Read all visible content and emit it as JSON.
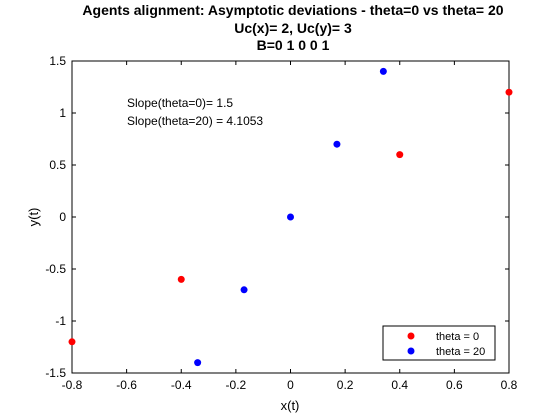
{
  "chart_data": {
    "type": "scatter",
    "title_lines": [
      "Agents alignment: Asymptotic deviations - theta=0 vs theta= 20",
      "Uc(x)= 2, Uc(y)= 3",
      "B=0  1  0  0  1"
    ],
    "xlabel": "x(t)",
    "ylabel": "y(t)",
    "xlim": [
      -0.8,
      0.8
    ],
    "ylim": [
      -1.5,
      1.5
    ],
    "xticks": [
      -0.8,
      -0.6,
      -0.4,
      -0.2,
      0,
      0.2,
      0.4,
      0.6,
      0.8
    ],
    "yticks": [
      -1.5,
      -1,
      -0.5,
      0,
      0.5,
      1,
      1.5
    ],
    "xtick_labels": [
      "-0.8",
      "-0.6",
      "-0.4",
      "-0.2",
      "0",
      "0.2",
      "0.4",
      "0.6",
      "0.8"
    ],
    "ytick_labels": [
      "-1.5",
      "-1",
      "-0.5",
      "0",
      "0.5",
      "1",
      "1.5"
    ],
    "grid": false,
    "legend_position": "bottom-right",
    "annotations": [
      "Slope(theta=0)= 1.5",
      "Slope(theta=20) = 4.1053"
    ],
    "series": [
      {
        "name": "theta = 0",
        "color": "#ff0000",
        "points": [
          [
            -0.8,
            -1.2
          ],
          [
            -0.4,
            -0.6
          ],
          [
            0.4,
            0.6
          ],
          [
            0.8,
            1.2
          ]
        ]
      },
      {
        "name": "theta = 20",
        "color": "#0000ff",
        "points": [
          [
            -0.34,
            -1.4
          ],
          [
            -0.17,
            -0.7
          ],
          [
            0,
            0
          ],
          [
            0.17,
            0.7
          ],
          [
            0.34,
            1.4
          ]
        ]
      }
    ]
  }
}
